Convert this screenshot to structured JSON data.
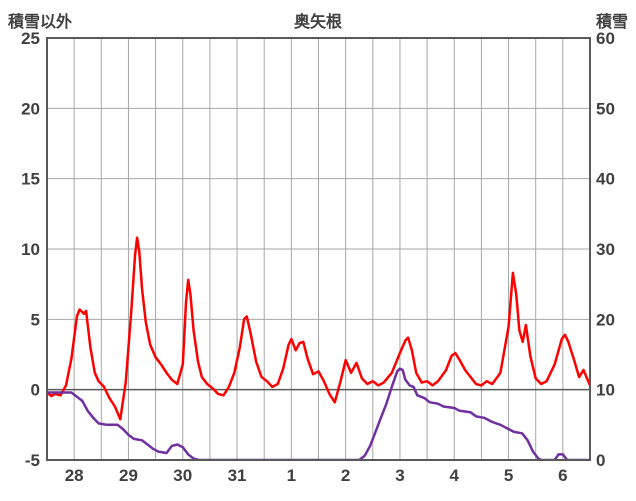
{
  "header": {
    "left_axis_title": "積雪以外",
    "title": "奥矢根",
    "right_axis_title": "積雪"
  },
  "chart_data": {
    "type": "line",
    "title": "奥矢根",
    "grid": true,
    "legend": "none",
    "left_axis": {
      "label": "積雪以外",
      "min": -5,
      "max": 25,
      "ticks": [
        25,
        20,
        15,
        10,
        5,
        0,
        -5
      ]
    },
    "right_axis": {
      "label": "積雪",
      "min": 0,
      "max": 60,
      "ticks": [
        60,
        50,
        40,
        30,
        20,
        10,
        0
      ]
    },
    "x_axis": {
      "labels": [
        "28",
        "29",
        "30",
        "31",
        "1",
        "2",
        "3",
        "4",
        "5",
        "6"
      ],
      "min": 0,
      "max": 10,
      "gridline_interval": 0.5
    },
    "colors": {
      "line_other": "#ff0000",
      "line_snow": "#7030a0",
      "grid": "#a6a6a6",
      "border": "#595959",
      "zero_line": "#595959",
      "tick_text": "#404040"
    },
    "series": [
      {
        "name": "積雪以外",
        "axis": "left",
        "color": "#ff0000",
        "points": [
          [
            0,
            -0.2
          ],
          [
            0.08,
            -0.45
          ],
          [
            0.15,
            -0.3
          ],
          [
            0.25,
            -0.4
          ],
          [
            0.35,
            0.3
          ],
          [
            0.45,
            2.2
          ],
          [
            0.55,
            5.2
          ],
          [
            0.6,
            5.7
          ],
          [
            0.68,
            5.4
          ],
          [
            0.72,
            5.6
          ],
          [
            0.8,
            3.0
          ],
          [
            0.88,
            1.2
          ],
          [
            0.95,
            0.6
          ],
          [
            1.05,
            0.2
          ],
          [
            1.15,
            -0.6
          ],
          [
            1.25,
            -1.2
          ],
          [
            1.35,
            -2.1
          ],
          [
            1.45,
            0.5
          ],
          [
            1.55,
            5.5
          ],
          [
            1.62,
            9.5
          ],
          [
            1.66,
            10.8
          ],
          [
            1.7,
            9.8
          ],
          [
            1.75,
            7.2
          ],
          [
            1.82,
            4.8
          ],
          [
            1.9,
            3.2
          ],
          [
            2.0,
            2.3
          ],
          [
            2.1,
            1.8
          ],
          [
            2.2,
            1.2
          ],
          [
            2.3,
            0.7
          ],
          [
            2.4,
            0.4
          ],
          [
            2.5,
            1.8
          ],
          [
            2.56,
            6.2
          ],
          [
            2.6,
            7.8
          ],
          [
            2.64,
            6.8
          ],
          [
            2.7,
            4.2
          ],
          [
            2.78,
            2.0
          ],
          [
            2.85,
            0.9
          ],
          [
            2.95,
            0.4
          ],
          [
            3.05,
            0.1
          ],
          [
            3.15,
            -0.3
          ],
          [
            3.25,
            -0.4
          ],
          [
            3.35,
            0.2
          ],
          [
            3.45,
            1.2
          ],
          [
            3.55,
            3.0
          ],
          [
            3.63,
            5.0
          ],
          [
            3.68,
            5.2
          ],
          [
            3.75,
            4.0
          ],
          [
            3.85,
            2.0
          ],
          [
            3.95,
            0.9
          ],
          [
            4.05,
            0.6
          ],
          [
            4.15,
            0.2
          ],
          [
            4.25,
            0.4
          ],
          [
            4.35,
            1.5
          ],
          [
            4.45,
            3.2
          ],
          [
            4.5,
            3.6
          ],
          [
            4.58,
            2.8
          ],
          [
            4.65,
            3.3
          ],
          [
            4.72,
            3.4
          ],
          [
            4.8,
            2.2
          ],
          [
            4.9,
            1.1
          ],
          [
            5.0,
            1.3
          ],
          [
            5.1,
            0.6
          ],
          [
            5.2,
            -0.3
          ],
          [
            5.3,
            -0.9
          ],
          [
            5.4,
            0.5
          ],
          [
            5.5,
            2.1
          ],
          [
            5.6,
            1.2
          ],
          [
            5.7,
            1.9
          ],
          [
            5.8,
            0.8
          ],
          [
            5.9,
            0.4
          ],
          [
            6.0,
            0.6
          ],
          [
            6.1,
            0.3
          ],
          [
            6.2,
            0.5
          ],
          [
            6.35,
            1.2
          ],
          [
            6.5,
            2.6
          ],
          [
            6.6,
            3.5
          ],
          [
            6.65,
            3.7
          ],
          [
            6.72,
            2.8
          ],
          [
            6.8,
            1.2
          ],
          [
            6.9,
            0.5
          ],
          [
            7.0,
            0.6
          ],
          [
            7.1,
            0.3
          ],
          [
            7.2,
            0.6
          ],
          [
            7.35,
            1.4
          ],
          [
            7.45,
            2.4
          ],
          [
            7.52,
            2.6
          ],
          [
            7.6,
            2.1
          ],
          [
            7.7,
            1.4
          ],
          [
            7.8,
            0.9
          ],
          [
            7.9,
            0.4
          ],
          [
            8.0,
            0.3
          ],
          [
            8.1,
            0.6
          ],
          [
            8.2,
            0.4
          ],
          [
            8.35,
            1.2
          ],
          [
            8.5,
            4.5
          ],
          [
            8.58,
            8.3
          ],
          [
            8.64,
            6.8
          ],
          [
            8.7,
            4.2
          ],
          [
            8.76,
            3.4
          ],
          [
            8.82,
            4.6
          ],
          [
            8.9,
            2.4
          ],
          [
            9.0,
            0.8
          ],
          [
            9.1,
            0.4
          ],
          [
            9.2,
            0.6
          ],
          [
            9.35,
            1.8
          ],
          [
            9.48,
            3.6
          ],
          [
            9.54,
            3.9
          ],
          [
            9.6,
            3.4
          ],
          [
            9.7,
            2.2
          ],
          [
            9.8,
            0.9
          ],
          [
            9.88,
            1.4
          ],
          [
            10,
            0.3
          ]
        ]
      },
      {
        "name": "積雪",
        "axis": "right",
        "color": "#7030a0",
        "points": [
          [
            0,
            9.6
          ],
          [
            0.45,
            9.6
          ],
          [
            0.55,
            9.0
          ],
          [
            0.65,
            8.4
          ],
          [
            0.75,
            7.0
          ],
          [
            0.85,
            6.0
          ],
          [
            0.95,
            5.2
          ],
          [
            1.1,
            5.0
          ],
          [
            1.3,
            5.0
          ],
          [
            1.4,
            4.4
          ],
          [
            1.5,
            3.6
          ],
          [
            1.6,
            3.0
          ],
          [
            1.75,
            2.8
          ],
          [
            1.85,
            2.2
          ],
          [
            1.95,
            1.6
          ],
          [
            2.05,
            1.2
          ],
          [
            2.2,
            1.0
          ],
          [
            2.3,
            2.0
          ],
          [
            2.4,
            2.2
          ],
          [
            2.5,
            1.8
          ],
          [
            2.6,
            0.8
          ],
          [
            2.7,
            0.2
          ],
          [
            2.8,
            0
          ],
          [
            5.75,
            0
          ],
          [
            5.85,
            0.6
          ],
          [
            5.95,
            2.0
          ],
          [
            6.05,
            4.0
          ],
          [
            6.15,
            6.0
          ],
          [
            6.25,
            8.0
          ],
          [
            6.35,
            10.4
          ],
          [
            6.45,
            12.6
          ],
          [
            6.5,
            13.0
          ],
          [
            6.55,
            12.8
          ],
          [
            6.6,
            11.4
          ],
          [
            6.68,
            10.6
          ],
          [
            6.75,
            10.4
          ],
          [
            6.82,
            9.2
          ],
          [
            6.95,
            8.8
          ],
          [
            7.05,
            8.2
          ],
          [
            7.2,
            8.0
          ],
          [
            7.3,
            7.6
          ],
          [
            7.5,
            7.4
          ],
          [
            7.6,
            7.0
          ],
          [
            7.8,
            6.8
          ],
          [
            7.9,
            6.2
          ],
          [
            8.05,
            6.0
          ],
          [
            8.2,
            5.4
          ],
          [
            8.35,
            5.0
          ],
          [
            8.5,
            4.4
          ],
          [
            8.6,
            4.0
          ],
          [
            8.75,
            3.8
          ],
          [
            8.85,
            2.8
          ],
          [
            8.95,
            1.2
          ],
          [
            9.05,
            0.2
          ],
          [
            9.1,
            0
          ],
          [
            9.35,
            0
          ],
          [
            9.42,
            0.8
          ],
          [
            9.5,
            0.8
          ],
          [
            9.58,
            0
          ],
          [
            10,
            0
          ]
        ]
      }
    ]
  }
}
